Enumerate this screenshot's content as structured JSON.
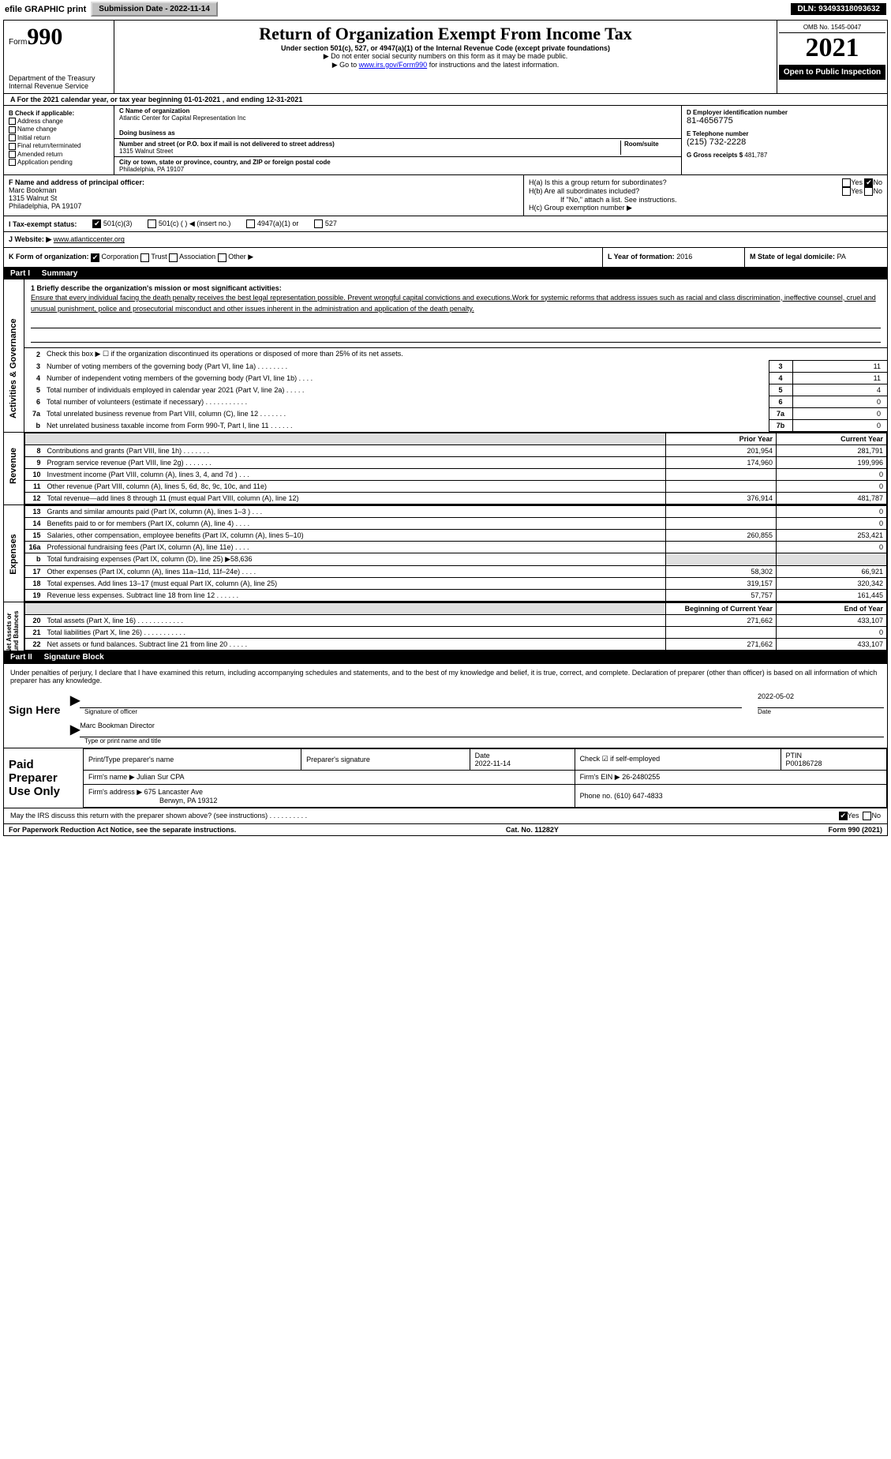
{
  "topbar": {
    "efile": "efile GRAPHIC print",
    "submission": "Submission Date - 2022-11-14",
    "dln": "DLN: 93493318093632"
  },
  "header": {
    "form_prefix": "Form",
    "form_number": "990",
    "title": "Return of Organization Exempt From Income Tax",
    "subtitle": "Under section 501(c), 527, or 4947(a)(1) of the Internal Revenue Code (except private foundations)",
    "note1": "▶ Do not enter social security numbers on this form as it may be made public.",
    "note2_pre": "▶ Go to ",
    "note2_link": "www.irs.gov/Form990",
    "note2_post": " for instructions and the latest information.",
    "dept": "Department of the Treasury",
    "irs": "Internal Revenue Service",
    "omb": "OMB No. 1545-0047",
    "year": "2021",
    "open": "Open to Public Inspection"
  },
  "periodA": "A For the 2021 calendar year, or tax year beginning 01-01-2021    , and ending 12-31-2021",
  "blockB": {
    "label": "B Check if applicable:",
    "opts": [
      "Address change",
      "Name change",
      "Initial return",
      "Final return/terminated",
      "Amended return",
      "Application pending"
    ]
  },
  "blockC": {
    "name_label": "C Name of organization",
    "name": "Atlantic Center for Capital Representation Inc",
    "dba_label": "Doing business as",
    "dba": "",
    "addr_label": "Number and street (or P.O. box if mail is not delivered to street address)",
    "room_label": "Room/suite",
    "addr": "1315 Walnut Street",
    "city_label": "City or town, state or province, country, and ZIP or foreign postal code",
    "city": "Philadelphia, PA  19107"
  },
  "blockDE": {
    "d_label": "D Employer identification number",
    "d_val": "81-4656775",
    "e_label": "E Telephone number",
    "e_val": "(215) 732-2228",
    "g_label": "G Gross receipts $",
    "g_val": "481,787"
  },
  "blockF": {
    "label": "F  Name and address of principal officer:",
    "name": "Marc Bookman",
    "addr1": "1315 Walnut St",
    "addr2": "Philadelphia, PA  19107"
  },
  "blockH": {
    "ha": "H(a)  Is this a group return for subordinates?",
    "hb": "H(b)  Are all subordinates included?",
    "hb_note": "If \"No,\" attach a list. See instructions.",
    "hc": "H(c)  Group exemption number ▶",
    "yes": "Yes",
    "no": "No"
  },
  "blockI": {
    "label": "I   Tax-exempt status:",
    "o1": "501(c)(3)",
    "o2": "501(c) (   ) ◀ (insert no.)",
    "o3": "4947(a)(1) or",
    "o4": "527"
  },
  "blockJ": {
    "label": "J   Website: ▶",
    "val": "www.atlanticcenter.org"
  },
  "blockK": {
    "label": "K Form of organization:",
    "o1": "Corporation",
    "o2": "Trust",
    "o3": "Association",
    "o4": "Other ▶"
  },
  "blockL": {
    "label": "L Year of formation:",
    "val": "2016"
  },
  "blockM": {
    "label": "M State of legal domicile:",
    "val": "PA"
  },
  "part1": {
    "bar_num": "Part I",
    "bar_title": "Summary"
  },
  "tabs": {
    "ag": "Activities & Governance",
    "rev": "Revenue",
    "exp": "Expenses",
    "na": "Net Assets or\nFund Balances"
  },
  "mission": {
    "q": "1  Briefly describe the organization's mission or most significant activities:",
    "text": "Ensure that every individual facing the death penalty receives the best legal representation possible. Prevent wrongful capital convictions and executions.Work for systemic reforms that address issues such as racial and class discrimination, ineffective counsel, cruel and unusual punishment, police and prosecutorial misconduct and other issues inherent in the administration and application of the death penalty."
  },
  "ag_lines": [
    {
      "n": "2",
      "t": "Check this box ▶ ☐  if the organization discontinued its operations or disposed of more than 25% of its net assets.",
      "box": "",
      "val": ""
    },
    {
      "n": "3",
      "t": "Number of voting members of the governing body (Part VI, line 1a)   .    .    .    .    .    .    .    .",
      "box": "3",
      "val": "11"
    },
    {
      "n": "4",
      "t": "Number of independent voting members of the governing body (Part VI, line 1b)   .    .    .    .",
      "box": "4",
      "val": "11"
    },
    {
      "n": "5",
      "t": "Total number of individuals employed in calendar year 2021 (Part V, line 2a)   .    .    .    .    .",
      "box": "5",
      "val": "4"
    },
    {
      "n": "6",
      "t": "Total number of volunteers (estimate if necessary)   .    .    .    .    .    .    .    .    .    .    .",
      "box": "6",
      "val": "0"
    },
    {
      "n": "7a",
      "t": "Total unrelated business revenue from Part VIII, column (C), line 12   .    .    .    .    .    .    .",
      "box": "7a",
      "val": "0"
    },
    {
      "n": "b",
      "t": "Net unrelated business taxable income from Form 990-T, Part I, line 11   .    .    .    .    .    .",
      "box": "7b",
      "val": "0"
    }
  ],
  "fin_hdr": {
    "py": "Prior Year",
    "cy": "Current Year"
  },
  "rev_lines": [
    {
      "n": "8",
      "t": "Contributions and grants (Part VIII, line 1h)   .    .    .    .    .    .    .",
      "py": "201,954",
      "cy": "281,791"
    },
    {
      "n": "9",
      "t": "Program service revenue (Part VIII, line 2g)   .    .    .    .    .    .    .",
      "py": "174,960",
      "cy": "199,996"
    },
    {
      "n": "10",
      "t": "Investment income (Part VIII, column (A), lines 3, 4, and 7d )   .    .    .",
      "py": "",
      "cy": "0"
    },
    {
      "n": "11",
      "t": "Other revenue (Part VIII, column (A), lines 5, 6d, 8c, 9c, 10c, and 11e)",
      "py": "",
      "cy": "0"
    },
    {
      "n": "12",
      "t": "Total revenue—add lines 8 through 11 (must equal Part VIII, column (A), line 12)",
      "py": "376,914",
      "cy": "481,787"
    }
  ],
  "exp_lines": [
    {
      "n": "13",
      "t": "Grants and similar amounts paid (Part IX, column (A), lines 1–3 )   .    .    .",
      "py": "",
      "cy": "0"
    },
    {
      "n": "14",
      "t": "Benefits paid to or for members (Part IX, column (A), line 4)   .    .    .    .",
      "py": "",
      "cy": "0"
    },
    {
      "n": "15",
      "t": "Salaries, other compensation, employee benefits (Part IX, column (A), lines 5–10)",
      "py": "260,855",
      "cy": "253,421"
    },
    {
      "n": "16a",
      "t": "Professional fundraising fees (Part IX, column (A), line 11e)   .    .    .    .",
      "py": "",
      "cy": "0"
    },
    {
      "n": "b",
      "t": "Total fundraising expenses (Part IX, column (D), line 25) ▶58,636",
      "py": "shade",
      "cy": "shade"
    },
    {
      "n": "17",
      "t": "Other expenses (Part IX, column (A), lines 11a–11d, 11f–24e)   .    .    .    .",
      "py": "58,302",
      "cy": "66,921"
    },
    {
      "n": "18",
      "t": "Total expenses. Add lines 13–17 (must equal Part IX, column (A), line 25)",
      "py": "319,157",
      "cy": "320,342"
    },
    {
      "n": "19",
      "t": "Revenue less expenses. Subtract line 18 from line 12   .    .    .    .    .    .",
      "py": "57,757",
      "cy": "161,445"
    }
  ],
  "na_hdr": {
    "py": "Beginning of Current Year",
    "cy": "End of Year"
  },
  "na_lines": [
    {
      "n": "20",
      "t": "Total assets (Part X, line 16)   .    .    .    .    .    .    .    .    .    .    .    .",
      "py": "271,662",
      "cy": "433,107"
    },
    {
      "n": "21",
      "t": "Total liabilities (Part X, line 26)   .    .    .    .    .    .    .    .    .    .    .",
      "py": "",
      "cy": "0"
    },
    {
      "n": "22",
      "t": "Net assets or fund balances. Subtract line 21 from line 20   .    .    .    .    .",
      "py": "271,662",
      "cy": "433,107"
    }
  ],
  "part2": {
    "bar_num": "Part II",
    "bar_title": "Signature Block"
  },
  "sig": {
    "decl": "Under penalties of perjury, I declare that I have examined this return, including accompanying schedules and statements, and to the best of my knowledge and belief, it is true, correct, and complete. Declaration of preparer (other than officer) is based on all information of which preparer has any knowledge.",
    "sign_here": "Sign Here",
    "sig_officer": "Signature of officer",
    "date": "2022-05-02",
    "date_lbl": "Date",
    "name": "Marc Bookman  Director",
    "name_lbl": "Type or print name and title"
  },
  "prep": {
    "label": "Paid Preparer Use Only",
    "h1": "Print/Type preparer's name",
    "h2": "Preparer's signature",
    "h3": "Date",
    "h3v": "2022-11-14",
    "h4": "Check ☑ if self-employed",
    "h5": "PTIN",
    "h5v": "P00186728",
    "firm_lbl": "Firm's name    ▶",
    "firm": "Julian Sur CPA",
    "ein_lbl": "Firm's EIN ▶",
    "ein": "26-2480255",
    "addr_lbl": "Firm's address ▶",
    "addr1": "675 Lancaster Ave",
    "addr2": "Berwyn, PA  19312",
    "phone_lbl": "Phone no.",
    "phone": "(610) 647-4833"
  },
  "discuss": {
    "q": "May the IRS discuss this return with the preparer shown above? (see instructions)   .    .    .    .    .    .    .    .    .    .",
    "yes": "Yes",
    "no": "No"
  },
  "footer": {
    "left": "For Paperwork Reduction Act Notice, see the separate instructions.",
    "mid": "Cat. No. 11282Y",
    "right": "Form 990 (2021)"
  },
  "colors": {
    "black": "#000000",
    "white": "#ffffff",
    "link": "#0000ee",
    "button_bg": "#c0c0c0",
    "shade": "#e0e0e0"
  }
}
